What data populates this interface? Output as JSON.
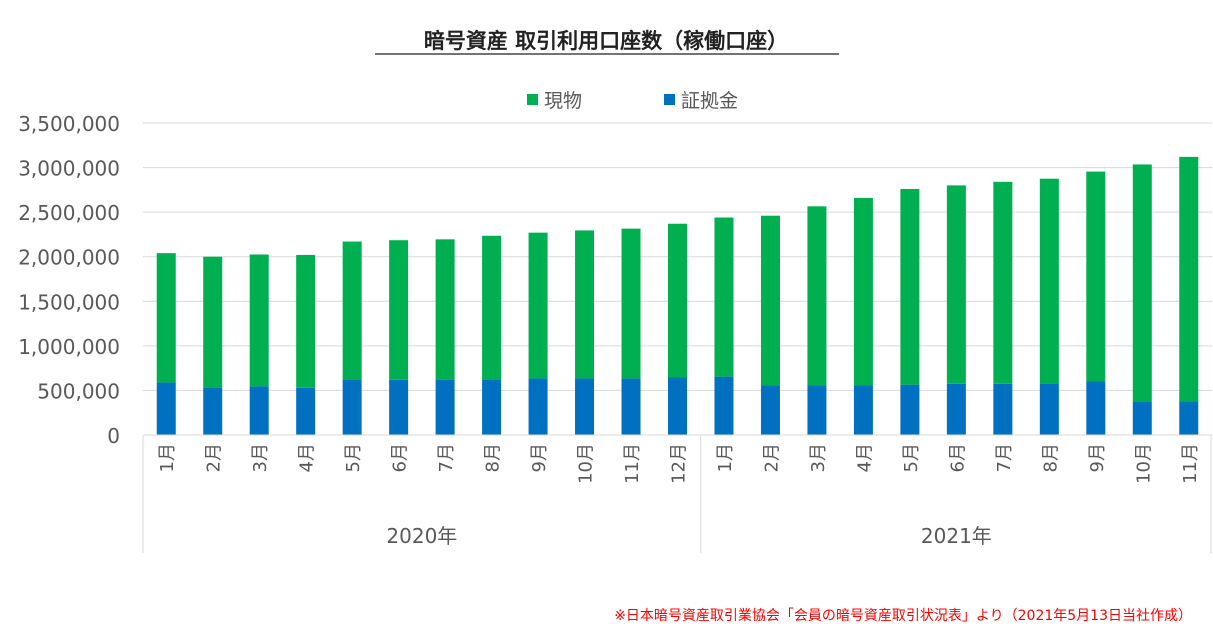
{
  "chart_data": {
    "type": "bar",
    "stacked": true,
    "title": "暗号資産 取引利用口座数（稼働口座）",
    "legend_position": "top",
    "ylim": [
      0,
      3500000
    ],
    "yticks": [
      0,
      500000,
      1000000,
      1500000,
      2000000,
      2500000,
      3000000,
      3500000
    ],
    "ytick_labels": [
      "0",
      "500,000",
      "1,000,000",
      "1,500,000",
      "2,000,000",
      "2,500,000",
      "3,000,000",
      "3,500,000"
    ],
    "grid": true,
    "categories": [
      "1月",
      "2月",
      "3月",
      "4月",
      "5月",
      "6月",
      "7月",
      "8月",
      "9月",
      "10月",
      "11月",
      "12月",
      "1月",
      "2月",
      "3月",
      "4月",
      "5月",
      "6月",
      "7月",
      "8月",
      "9月",
      "10月",
      "11月"
    ],
    "groups": [
      {
        "label": "2020年",
        "count": 12
      },
      {
        "label": "2021年",
        "count": 11
      }
    ],
    "series": [
      {
        "name": "証拠金",
        "color": "#0070C0",
        "values": [
          590000,
          535000,
          545000,
          530000,
          625000,
          620000,
          625000,
          625000,
          635000,
          635000,
          635000,
          645000,
          655000,
          555000,
          555000,
          555000,
          565000,
          575000,
          575000,
          580000,
          600000,
          370000,
          380000
        ]
      },
      {
        "name": "現物",
        "color": "#00B050",
        "values": [
          1450000,
          1465000,
          1480000,
          1490000,
          1545000,
          1565000,
          1570000,
          1610000,
          1635000,
          1660000,
          1680000,
          1725000,
          1785000,
          1905000,
          2010000,
          2105000,
          2195000,
          2225000,
          2265000,
          2295000,
          2355000,
          2665000,
          2740000
        ]
      }
    ]
  },
  "footnote": "※日本暗号資産取引業協会「会員の暗号資産取引状況表」より（2021年5月13日当社作成）"
}
